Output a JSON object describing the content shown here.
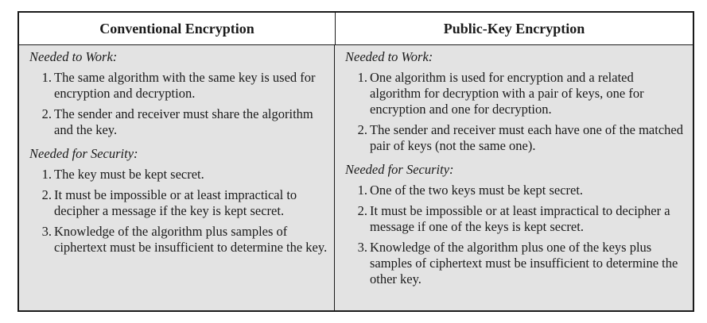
{
  "table": {
    "conventional": {
      "title": "Conventional Encryption",
      "needed_to_work_label": "Needed to Work:",
      "needed_to_work": [
        {
          "n": "1.",
          "text": "The same algorithm with the same key is used for encryption and decryption."
        },
        {
          "n": "2.",
          "text": "The sender and receiver must share the algorithm and the key."
        }
      ],
      "needed_for_security_label": "Needed for Security:",
      "needed_for_security": [
        {
          "n": "1.",
          "text": "The key must be kept secret."
        },
        {
          "n": "2.",
          "text": "It must be impossible or at least impractical to decipher a message if the key is kept secret."
        },
        {
          "n": "3.",
          "text": "Knowledge of the algorithm plus samples of ciphertext must be insufficient to determine the key."
        }
      ]
    },
    "public_key": {
      "title": "Public-Key Encryption",
      "needed_to_work_label": "Needed to Work:",
      "needed_to_work": [
        {
          "n": "1.",
          "text": "One algorithm is used for encryption and a related algorithm for decryption with a pair of keys, one for encryption and one for decryption."
        },
        {
          "n": "2.",
          "text": "The sender and receiver must each have one of the matched pair of keys (not the same one)."
        }
      ],
      "needed_for_security_label": "Needed for Security:",
      "needed_for_security": [
        {
          "n": "1.",
          "text": "One of the two keys must be kept secret."
        },
        {
          "n": "2.",
          "text": "It must be impossible or at least impractical to decipher a message if one of the keys is kept secret."
        },
        {
          "n": "3.",
          "text": "Knowledge of the algorithm plus one of the keys plus samples of ciphertext must be insufficient to determine the other key."
        }
      ]
    }
  }
}
